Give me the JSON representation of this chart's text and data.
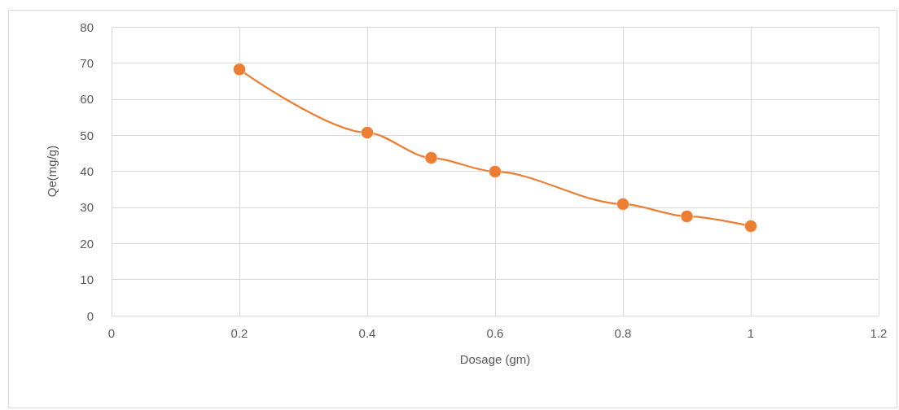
{
  "chart_data": {
    "type": "line",
    "xlabel": "Dosage (gm)",
    "ylabel": "Qe(mg/g)",
    "x": [
      0.2,
      0.4,
      0.5,
      0.6,
      0.8,
      0.9,
      1
    ],
    "series": [
      {
        "color": "#ed7d31",
        "values": [
          68.2,
          50.7,
          43.7,
          39.9,
          30.9,
          27.5,
          24.8
        ]
      }
    ],
    "xlim": [
      0,
      1.2
    ],
    "xticks": [
      0,
      0.2,
      0.4,
      0.6,
      0.8,
      1,
      1.2
    ],
    "ylim": [
      0,
      80
    ],
    "yticks": [
      0,
      10,
      20,
      30,
      40,
      50,
      60,
      70,
      80
    ],
    "grid": true,
    "marker": "circle",
    "line_style": "solid"
  }
}
